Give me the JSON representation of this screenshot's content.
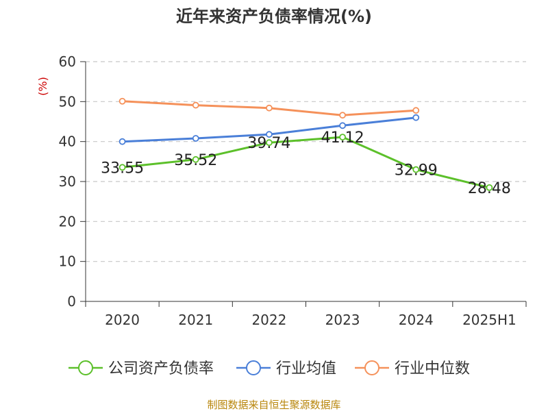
{
  "chart_data": {
    "type": "line",
    "title": "近年来资产负债率情况(%)",
    "ylabel": "(%)",
    "xlabel": "",
    "categories": [
      "2020",
      "2021",
      "2022",
      "2023",
      "2024",
      "2025H1"
    ],
    "ylim": [
      0,
      60
    ],
    "yticks": [
      0,
      10,
      20,
      30,
      40,
      50,
      60
    ],
    "grid": "horizontal-dashed",
    "legend_position": "bottom",
    "series": [
      {
        "name": "公司资产负债率",
        "color": "#5cc02a",
        "values": [
          33.55,
          35.52,
          39.74,
          41.12,
          32.99,
          28.48
        ],
        "labels": [
          "33.55",
          "35.52",
          "39.74",
          "41.12",
          "32.99",
          "28.48"
        ]
      },
      {
        "name": "行业均值",
        "color": "#4a7fd8",
        "values": [
          40.0,
          40.8,
          41.8,
          44.0,
          46.0,
          null
        ]
      },
      {
        "name": "行业中位数",
        "color": "#f5915a",
        "values": [
          50.1,
          49.1,
          48.4,
          46.6,
          47.8,
          null
        ]
      }
    ]
  },
  "footer": {
    "source": "制图数据来自恒生聚源数据库"
  }
}
